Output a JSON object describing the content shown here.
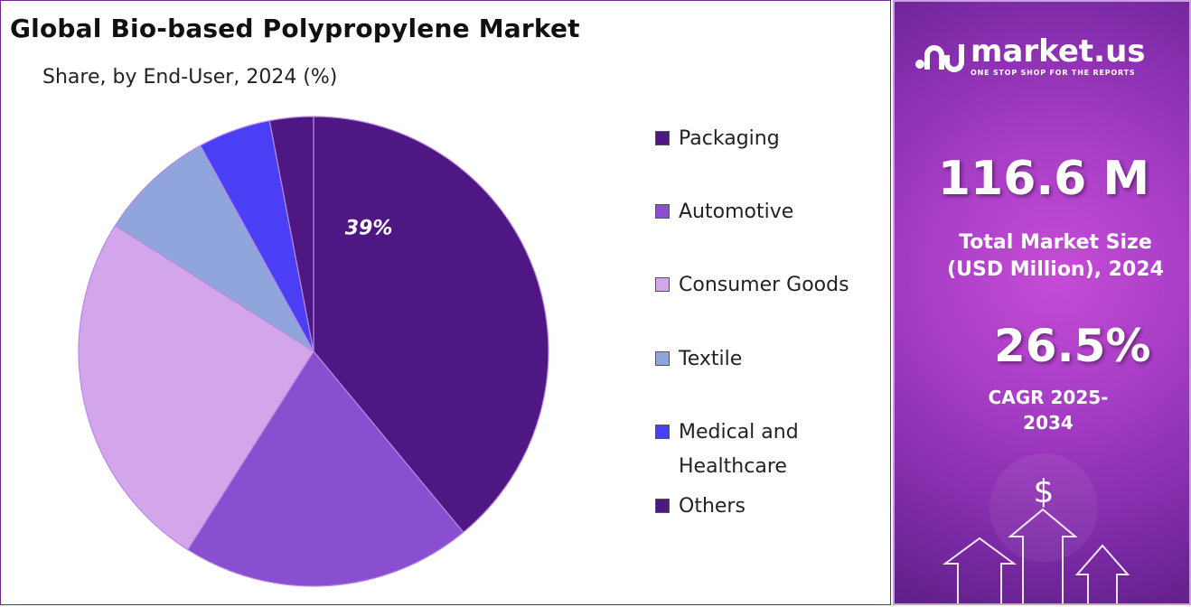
{
  "title": "Global Bio-based Polypropylene Market",
  "subtitle": "Share, by End-User, 2024 (%)",
  "chart_data": {
    "type": "pie",
    "title": "Global Bio-based Polypropylene Market",
    "subtitle": "Share, by End-User, 2024 (%)",
    "legend_position": "right",
    "slices": [
      {
        "label": "Packaging",
        "value": 39,
        "color": "#4e1783",
        "data_label": "39%"
      },
      {
        "label": "Automotive",
        "value": 20,
        "color": "#8a4fd0"
      },
      {
        "label": "Consumer Goods",
        "value": 25,
        "color": "#d3a6ec"
      },
      {
        "label": "Textile",
        "value": 8,
        "color": "#8fa5db"
      },
      {
        "label": "Medical and Healthcare",
        "value": 5,
        "color": "#4b3ff5"
      },
      {
        "label": "Others",
        "value": 3,
        "color": "#4e1783"
      }
    ]
  },
  "legend": [
    {
      "label": "Packaging",
      "color": "#4e1783"
    },
    {
      "label": "Automotive",
      "color": "#8a4fd0"
    },
    {
      "label": "Consumer Goods",
      "color": "#d3a6ec"
    },
    {
      "label": "Textile",
      "color": "#8fa5db"
    },
    {
      "label": "Medical and Healthcare",
      "color": "#4b3ff5"
    },
    {
      "label": "Others",
      "color": "#4e1783"
    }
  ],
  "sidebar": {
    "brand_name": "market.us",
    "brand_tagline": "ONE STOP SHOP FOR THE REPORTS",
    "market_size_value": "116.6 M",
    "market_size_label": "Total Market Size (USD Million), 2024",
    "cagr_value": "26.5%",
    "cagr_label": "CAGR 2025-2034",
    "currency_symbol": "$"
  }
}
